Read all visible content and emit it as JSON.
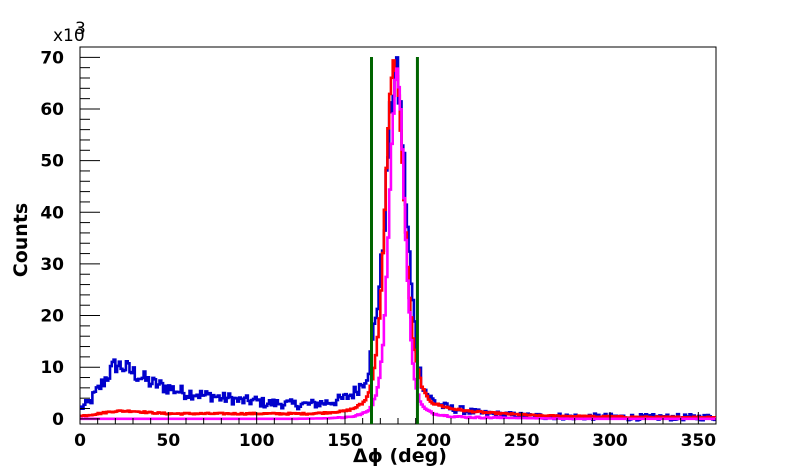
{
  "chart_data": {
    "type": "histogram",
    "xlabel": "Δϕ (deg)",
    "ylabel": "Counts",
    "xlim": [
      0,
      360
    ],
    "ylim": [
      -1,
      72
    ],
    "y_multiplier_label": "x10",
    "y_multiplier_exponent": "3",
    "x_ticks": [
      0,
      50,
      100,
      150,
      200,
      250,
      300,
      350
    ],
    "y_ticks": [
      0,
      10,
      20,
      30,
      40,
      50,
      60,
      70
    ],
    "grid": false,
    "legend": "none",
    "cut_lines": {
      "color": "#006400",
      "x": [
        165,
        191
      ]
    },
    "series": [
      {
        "color": "#0000cc",
        "style": "noisy-steps",
        "x": [
          0,
          5,
          10,
          15,
          20,
          25,
          30,
          35,
          40,
          45,
          50,
          55,
          60,
          65,
          70,
          75,
          80,
          85,
          90,
          95,
          100,
          105,
          110,
          115,
          120,
          125,
          130,
          135,
          140,
          145,
          150,
          155,
          160,
          163,
          165,
          167,
          169,
          171,
          173,
          175,
          177,
          179,
          181,
          183,
          185,
          187,
          189,
          191,
          193,
          195,
          197,
          200,
          205,
          210,
          215,
          220,
          225,
          230,
          240,
          250,
          260,
          270,
          280,
          290,
          300,
          310,
          320,
          330,
          340,
          350,
          360
        ],
        "y": [
          2.0,
          3.0,
          5.5,
          8.0,
          10.5,
          10.0,
          9.0,
          8.0,
          7.0,
          6.5,
          6.0,
          5.5,
          5.0,
          5.0,
          4.5,
          4.5,
          4.0,
          4.0,
          3.5,
          3.5,
          3.5,
          3.0,
          3.0,
          3.0,
          2.8,
          2.8,
          2.8,
          3.0,
          3.2,
          3.5,
          4.0,
          5.0,
          7.0,
          9.0,
          13.0,
          19.0,
          24.0,
          31.0,
          42.0,
          55.0,
          64.0,
          67.0,
          62.0,
          52.0,
          40.0,
          28.0,
          20.0,
          12.0,
          8.0,
          6.0,
          4.5,
          3.5,
          2.5,
          2.0,
          1.8,
          1.5,
          1.2,
          1.0,
          0.8,
          0.6,
          0.5,
          0.5,
          0.4,
          0.4,
          0.4,
          0.3,
          0.3,
          0.3,
          0.3,
          0.3,
          0.3
        ]
      },
      {
        "color": "#ff0000",
        "style": "steps",
        "x": [
          0,
          10,
          20,
          30,
          40,
          50,
          60,
          70,
          80,
          90,
          100,
          110,
          120,
          130,
          140,
          150,
          155,
          160,
          163,
          165,
          167,
          169,
          171,
          173,
          175,
          177,
          179,
          181,
          183,
          185,
          187,
          189,
          191,
          193,
          195,
          197,
          200,
          205,
          210,
          220,
          230,
          240,
          250,
          260,
          280,
          300,
          320,
          340,
          360
        ],
        "y": [
          0.5,
          1.0,
          1.5,
          1.5,
          1.2,
          1.0,
          1.0,
          1.0,
          1.0,
          1.0,
          1.0,
          1.0,
          1.0,
          1.0,
          1.2,
          1.5,
          2.0,
          3.0,
          4.5,
          7.0,
          11.0,
          17.0,
          28.0,
          44.0,
          60.0,
          69.0,
          68.0,
          60.0,
          46.0,
          32.0,
          21.0,
          14.0,
          10.0,
          7.0,
          5.0,
          4.0,
          3.0,
          2.5,
          2.0,
          1.5,
          1.2,
          1.0,
          0.8,
          0.6,
          0.5,
          0.4,
          0.3,
          0.3,
          0.3
        ]
      },
      {
        "color": "#ff00ff",
        "style": "steps",
        "x": [
          0,
          20,
          40,
          60,
          80,
          100,
          120,
          140,
          150,
          155,
          160,
          163,
          165,
          167,
          169,
          171,
          173,
          175,
          177,
          179,
          181,
          183,
          185,
          187,
          189,
          191,
          193,
          195,
          200,
          210,
          220,
          240,
          260,
          280,
          300,
          320,
          340,
          360
        ],
        "y": [
          0.0,
          0.0,
          0.0,
          0.0,
          0.0,
          0.0,
          0.0,
          0.1,
          0.3,
          0.5,
          1.0,
          1.5,
          2.5,
          4.0,
          7.0,
          12.0,
          23.0,
          40.0,
          57.0,
          68.0,
          64.0,
          48.0,
          30.0,
          17.0,
          9.0,
          5.0,
          3.0,
          2.0,
          1.0,
          0.5,
          0.3,
          0.2,
          0.1,
          0.0,
          0.0,
          0.0,
          0.0,
          0.0
        ]
      }
    ]
  }
}
